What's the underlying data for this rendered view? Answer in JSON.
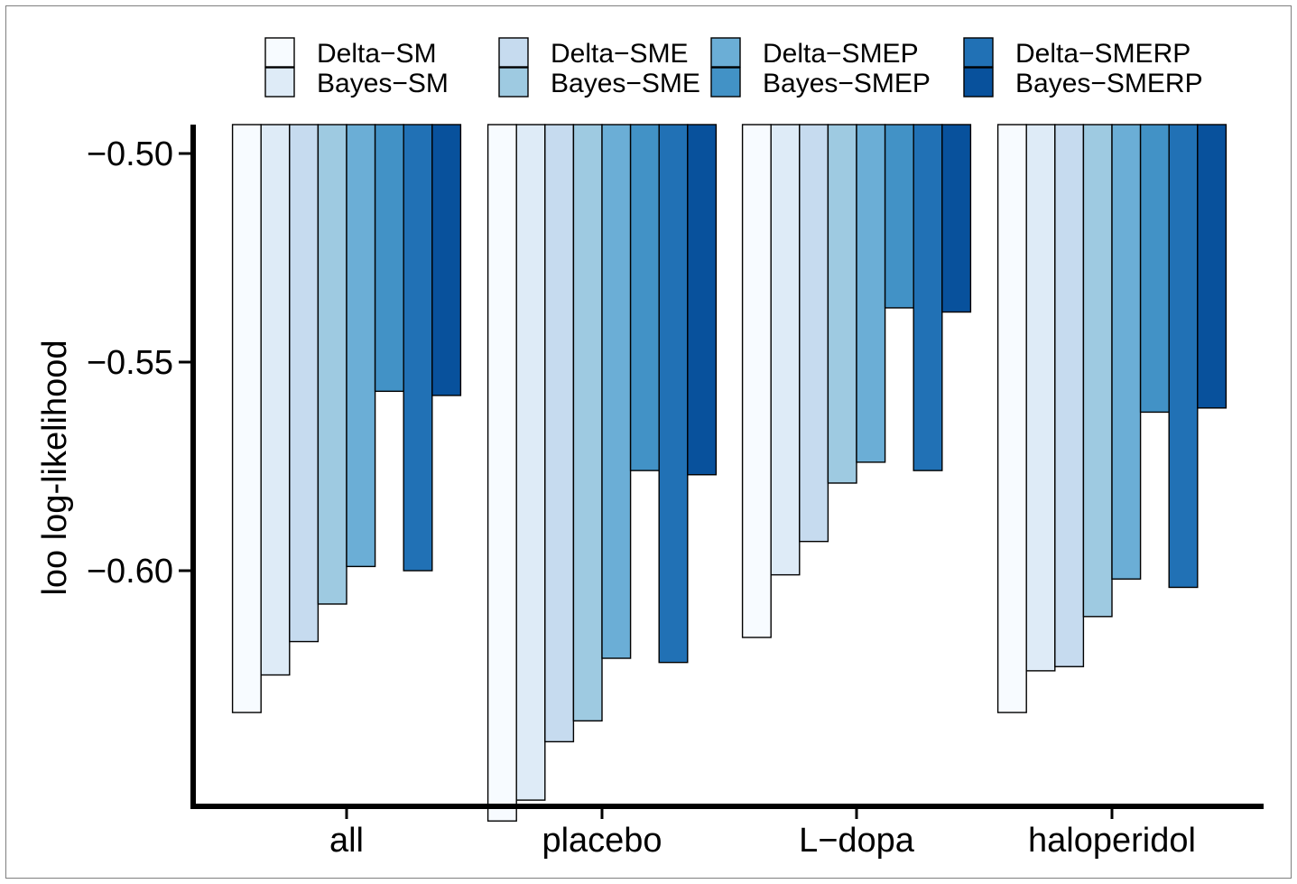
{
  "chart_data": {
    "type": "bar",
    "title": "",
    "xlabel": "",
    "ylabel": "loo log-likelihood",
    "ylim": [
      -0.655,
      -0.493
    ],
    "y_bars_from": -0.493,
    "yticks": [
      -0.5,
      -0.55,
      -0.6
    ],
    "ytick_labels": [
      "−0.50",
      "−0.55",
      "−0.60"
    ],
    "categories": [
      "all",
      "placebo",
      "L−dopa",
      "haloperidol"
    ],
    "legend_position": "top",
    "grid": false,
    "series": [
      {
        "name": "Delta−SM",
        "color": "#f7fbff",
        "values": [
          -0.634,
          -0.66,
          -0.616,
          -0.634
        ]
      },
      {
        "name": "Bayes−SM",
        "color": "#deebf7",
        "values": [
          -0.625,
          -0.655,
          -0.601,
          -0.624
        ]
      },
      {
        "name": "Delta−SME",
        "color": "#c6dbef",
        "values": [
          -0.617,
          -0.641,
          -0.593,
          -0.623
        ]
      },
      {
        "name": "Bayes−SME",
        "color": "#9ecae1",
        "values": [
          -0.608,
          -0.636,
          -0.579,
          -0.611
        ]
      },
      {
        "name": "Delta−SMEP",
        "color": "#6baed6",
        "values": [
          -0.599,
          -0.621,
          -0.574,
          -0.602
        ]
      },
      {
        "name": "Bayes−SMEP",
        "color": "#4292c6",
        "values": [
          -0.557,
          -0.576,
          -0.537,
          -0.562
        ]
      },
      {
        "name": "Delta−SMERP",
        "color": "#2171b5",
        "values": [
          -0.6,
          -0.622,
          -0.576,
          -0.604
        ]
      },
      {
        "name": "Bayes−SMERP",
        "color": "#08519c",
        "values": [
          -0.558,
          -0.577,
          -0.538,
          -0.561
        ]
      }
    ]
  }
}
